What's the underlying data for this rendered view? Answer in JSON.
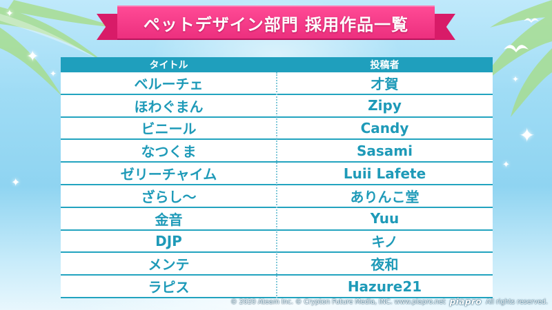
{
  "title": "ペットデザイン部門 採用作品一覧",
  "table": {
    "headers": [
      "タイトル",
      "投稿者"
    ],
    "rows": [
      [
        "ベルーチェ",
        "才賀"
      ],
      [
        "ほわぐまん",
        "Zipy"
      ],
      [
        "ビニール",
        "Candy"
      ],
      [
        "なつくま",
        "Sasami"
      ],
      [
        "ゼリーチャイム",
        "Luii Lafete"
      ],
      [
        "ざらし〜",
        "ありんこ堂"
      ],
      [
        "金音",
        "Yuu"
      ],
      [
        "DJP",
        "キノ"
      ],
      [
        "メンテ",
        "夜和"
      ],
      [
        "ラピス",
        "Hazure21"
      ]
    ]
  },
  "footer": {
    "copyright": "© 2020 Ateam Inc.  © Crypton Future Media, INC. www.piapro.net",
    "logo": "piapro",
    "rights": "All rights reserved."
  },
  "colors": {
    "banner": "#ec2f7e",
    "header": "#1f9fbd",
    "text": "#1e9ab8"
  }
}
